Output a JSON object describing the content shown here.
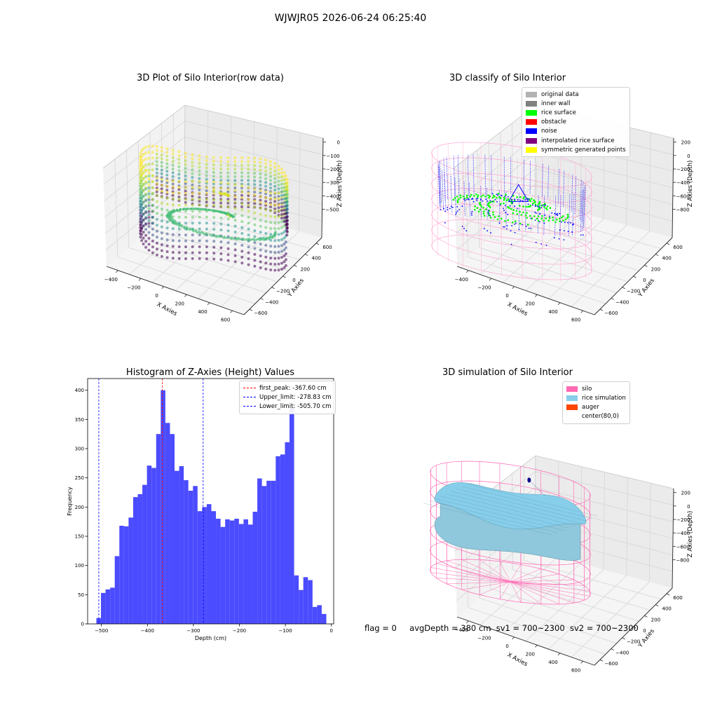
{
  "suptitle": "WJWJR05 2026-06-24 06:25:40",
  "status": {
    "flag": "flag = 0",
    "avg_depth": "avgDepth = 380 cm",
    "sv1": "sv1 = 700~2300",
    "sv2": "sv2 = 700~2300"
  },
  "colors": {
    "original_data": "#b3b3b3",
    "inner_wall": "#808080",
    "rice_surface": "#00ff00",
    "obstacle": "#ff0000",
    "noise": "#0000ff",
    "interpolated": "#800080",
    "symmetric": "#ffff00",
    "silo": "#ff69b4",
    "rice_simulation": "#87ceeb",
    "auger": "#ff4500",
    "histogram_bar": "#4b4bff",
    "first_peak_line": "#ff0000",
    "limit_line": "#0000ff"
  },
  "chart_data": [
    {
      "type": "scatter",
      "projection": "3d",
      "title": "3D Plot of Silo Interior(row data)",
      "xlabel": "X Axies",
      "ylabel": "Y Axies",
      "zlabel": "Z Axies (Depth)",
      "xticks": [
        "−400",
        "−200",
        "0",
        "200",
        "400",
        "600"
      ],
      "yticks": [
        "−600",
        "−400",
        "−200",
        "0",
        "200",
        "400",
        "600"
      ],
      "zticks": [
        "0",
        "−100",
        "−200",
        "−300",
        "−400",
        "−500"
      ],
      "colormap": "viridis",
      "grid": true
    },
    {
      "type": "scatter",
      "projection": "3d",
      "title": "3D classify of Silo Interior",
      "xlabel": "X Axies",
      "ylabel": "Y Axies",
      "zlabel": "Z Axies (Depth)",
      "xticks": [
        "−400",
        "−200",
        "0",
        "200",
        "400",
        "600"
      ],
      "yticks": [
        "−600",
        "−400",
        "−200",
        "0",
        "200",
        "400",
        "600"
      ],
      "zticks": [
        "200",
        "0",
        "−200",
        "−400",
        "−600",
        "−800"
      ],
      "legend": [
        "original data",
        "inner wall",
        "rice surface",
        "obstacle",
        "noise",
        "interpolated rice surface",
        "symmetric generated points"
      ],
      "legend_position": "top-right",
      "grid": true
    },
    {
      "type": "bar",
      "title": "Histogram of Z-Axies (Height) Values",
      "xlabel": "Depth (cm)",
      "ylabel": "Frequency",
      "xlim": [
        -530,
        5
      ],
      "ylim": [
        0,
        420
      ],
      "xticks": [
        "−500",
        "−400",
        "−300",
        "−200",
        "−100",
        "0"
      ],
      "yticks": [
        "0",
        "50",
        "100",
        "150",
        "200",
        "250",
        "300",
        "350",
        "400"
      ],
      "bin_start": -511,
      "bin_width": 10,
      "values": [
        10,
        53,
        59,
        62,
        116,
        168,
        167,
        182,
        217,
        222,
        238,
        271,
        267,
        325,
        400,
        344,
        325,
        262,
        270,
        246,
        228,
        236,
        193,
        200,
        205,
        193,
        180,
        166,
        179,
        177,
        180,
        171,
        179,
        170,
        192,
        249,
        236,
        245,
        245,
        287,
        290,
        311,
        370,
        83,
        58,
        80,
        75,
        29,
        32,
        17
      ],
      "vlines": [
        {
          "label": "first_peak: -367.60 cm",
          "x": -367.6,
          "color": "red"
        },
        {
          "label": "Upper_limit: -278.83 cm",
          "x": -278.83,
          "color": "blue"
        },
        {
          "label": "Lower_limit: -505.70 cm",
          "x": -505.7,
          "color": "blue"
        }
      ],
      "legend_position": "top-right"
    },
    {
      "type": "surface",
      "projection": "3d",
      "title": "3D simulation of Silo Interior",
      "xlabel": "X Axies",
      "ylabel": "Y Axies",
      "zlabel": "Z Axies (Depth)",
      "xticks": [
        "−400",
        "−200",
        "0",
        "200",
        "400",
        "600"
      ],
      "yticks": [
        "−600",
        "−400",
        "−200",
        "0",
        "200",
        "400",
        "600"
      ],
      "zticks": [
        "200",
        "0",
        "−200",
        "−400",
        "−600",
        "−800"
      ],
      "legend": [
        "silo",
        "rice simulation",
        "auger",
        "center(80,0)"
      ],
      "legend_position": "top-right",
      "grid": true
    }
  ]
}
